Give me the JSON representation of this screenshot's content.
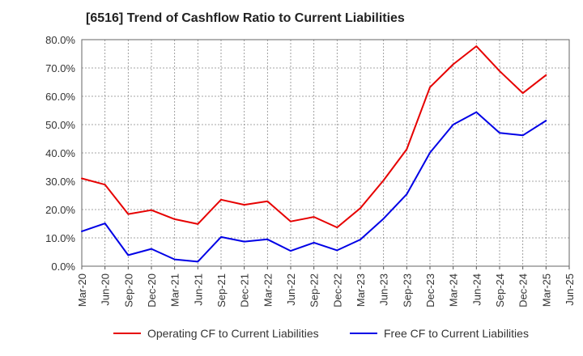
{
  "chart_data": {
    "type": "line",
    "title": "[6516]  Trend of Cashflow Ratio to Current Liabilities",
    "xlabel": "",
    "ylabel": "",
    "ylim": [
      0,
      80
    ],
    "y_ticks": [
      "0.0%",
      "10.0%",
      "20.0%",
      "30.0%",
      "40.0%",
      "50.0%",
      "60.0%",
      "70.0%",
      "80.0%"
    ],
    "y_tick_values": [
      0,
      10,
      20,
      30,
      40,
      50,
      60,
      70,
      80
    ],
    "x": [
      "Mar-20",
      "Jun-20",
      "Sep-20",
      "Dec-20",
      "Mar-21",
      "Jun-21",
      "Sep-21",
      "Dec-21",
      "Mar-22",
      "Jun-22",
      "Sep-22",
      "Dec-22",
      "Mar-23",
      "Jun-23",
      "Sep-23",
      "Dec-23",
      "Mar-24",
      "Jun-24",
      "Sep-24",
      "Dec-24",
      "Mar-25",
      "Jun-25"
    ],
    "grid": true,
    "legend_position": "bottom",
    "series": [
      {
        "name": "Operating CF to Current Liabilities",
        "color": "#e60000",
        "values": [
          31.0,
          28.8,
          18.4,
          19.8,
          16.6,
          14.9,
          23.5,
          21.7,
          22.9,
          15.8,
          17.4,
          13.7,
          20.5,
          30.3,
          41.3,
          63.2,
          71.3,
          77.7,
          68.9,
          61.1,
          67.5,
          null
        ]
      },
      {
        "name": "Free CF to Current Liabilities",
        "color": "#0000e6",
        "values": [
          12.3,
          15.1,
          3.9,
          6.1,
          2.4,
          1.6,
          10.3,
          8.7,
          9.5,
          5.4,
          8.3,
          5.6,
          9.4,
          16.8,
          25.4,
          40.1,
          50.0,
          54.4,
          47.1,
          46.2,
          51.4,
          null
        ]
      }
    ]
  }
}
